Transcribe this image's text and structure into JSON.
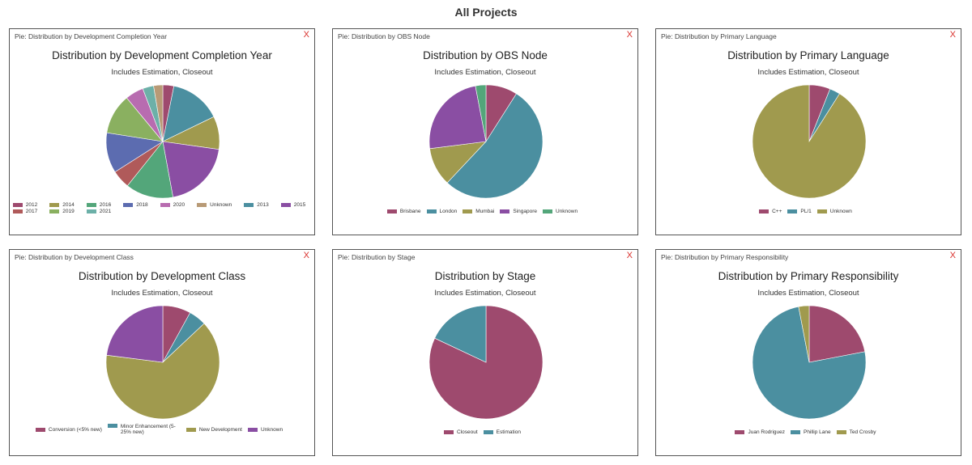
{
  "page": {
    "title": "All Projects",
    "close_label": "X"
  },
  "chart_data": [
    {
      "type": "pie",
      "header": "Pie: Distribution by Development Completion Year",
      "title": "Distribution by Development Completion Year",
      "subtitle": "Includes Estimation, Closeout",
      "legend_position": "bottom",
      "legend_layout": "grid",
      "legend_columns": 8,
      "start_angle": 90,
      "slices": [
        {
          "label": "2012",
          "value": 3,
          "color": "#9e4a6e"
        },
        {
          "label": "2013",
          "value": 14,
          "color": "#4b8fa0"
        },
        {
          "label": "2014",
          "value": 9,
          "color": "#a09a4e"
        },
        {
          "label": "2015",
          "value": 19,
          "color": "#8a4ea3"
        },
        {
          "label": "2016",
          "value": 13,
          "color": "#53a67a"
        },
        {
          "label": "2017",
          "value": 5,
          "color": "#b05a5a"
        },
        {
          "label": "2018",
          "value": 11,
          "color": "#5c6cb0"
        },
        {
          "label": "2019",
          "value": 11,
          "color": "#8ab060"
        },
        {
          "label": "2020",
          "value": 5,
          "color": "#b86cb0"
        },
        {
          "label": "2021",
          "value": 3,
          "color": "#6cb0a8"
        },
        {
          "label": "Unknown",
          "value": 2.5,
          "color": "#b89a76"
        }
      ]
    },
    {
      "type": "pie",
      "header": "Pie: Distribution by OBS Node",
      "title": "Distribution by OBS Node",
      "subtitle": "Includes Estimation, Closeout",
      "legend_position": "bottom",
      "start_angle": 90,
      "slices": [
        {
          "label": "Brisbane",
          "value": 9,
          "color": "#9e4a6e"
        },
        {
          "label": "London",
          "value": 53,
          "color": "#4b8fa0"
        },
        {
          "label": "Mumbai",
          "value": 11,
          "color": "#a09a4e"
        },
        {
          "label": "Singapore",
          "value": 24,
          "color": "#8a4ea3"
        },
        {
          "label": "Unknown",
          "value": 3,
          "color": "#53a67a"
        }
      ]
    },
    {
      "type": "pie",
      "header": "Pie: Distribution by Primary Language",
      "title": "Distribution by Primary Language",
      "subtitle": "Includes Estimation, Closeout",
      "legend_position": "bottom",
      "start_angle": 90,
      "slices": [
        {
          "label": "C++",
          "value": 6,
          "color": "#9e4a6e"
        },
        {
          "label": "PL/1",
          "value": 3,
          "color": "#4b8fa0"
        },
        {
          "label": "Unknown",
          "value": 91,
          "color": "#a09a4e"
        }
      ]
    },
    {
      "type": "pie",
      "header": "Pie: Distribution by Development Class",
      "title": "Distribution by Development Class",
      "subtitle": "Includes Estimation, Closeout",
      "legend_position": "bottom",
      "start_angle": 90,
      "slices": [
        {
          "label": "Conversion (<5% new)",
          "value": 8,
          "color": "#9e4a6e"
        },
        {
          "label": "Minor Enhancement (5-25% new)",
          "value": 5,
          "color": "#4b8fa0"
        },
        {
          "label": "New Development",
          "value": 64,
          "color": "#a09a4e"
        },
        {
          "label": "Unknown",
          "value": 23,
          "color": "#8a4ea3"
        }
      ]
    },
    {
      "type": "pie",
      "header": "Pie: Distribution by Stage",
      "title": "Distribution by Stage",
      "subtitle": "Includes Estimation, Closeout",
      "legend_position": "bottom",
      "start_angle": 90,
      "slices": [
        {
          "label": "Closeout",
          "value": 82,
          "color": "#9e4a6e"
        },
        {
          "label": "Estimation",
          "value": 18,
          "color": "#4b8fa0"
        }
      ]
    },
    {
      "type": "pie",
      "header": "Pie: Distribution by Primary Responsibility",
      "title": "Distribution by Primary Responsibility",
      "subtitle": "Includes Estimation, Closeout",
      "legend_position": "bottom",
      "start_angle": 90,
      "slices": [
        {
          "label": "Juan Rodriguez",
          "value": 22,
          "color": "#9e4a6e"
        },
        {
          "label": "Phillip Lane",
          "value": 75,
          "color": "#4b8fa0"
        },
        {
          "label": "Ted Crosby",
          "value": 3,
          "color": "#a09a4e"
        }
      ]
    }
  ]
}
